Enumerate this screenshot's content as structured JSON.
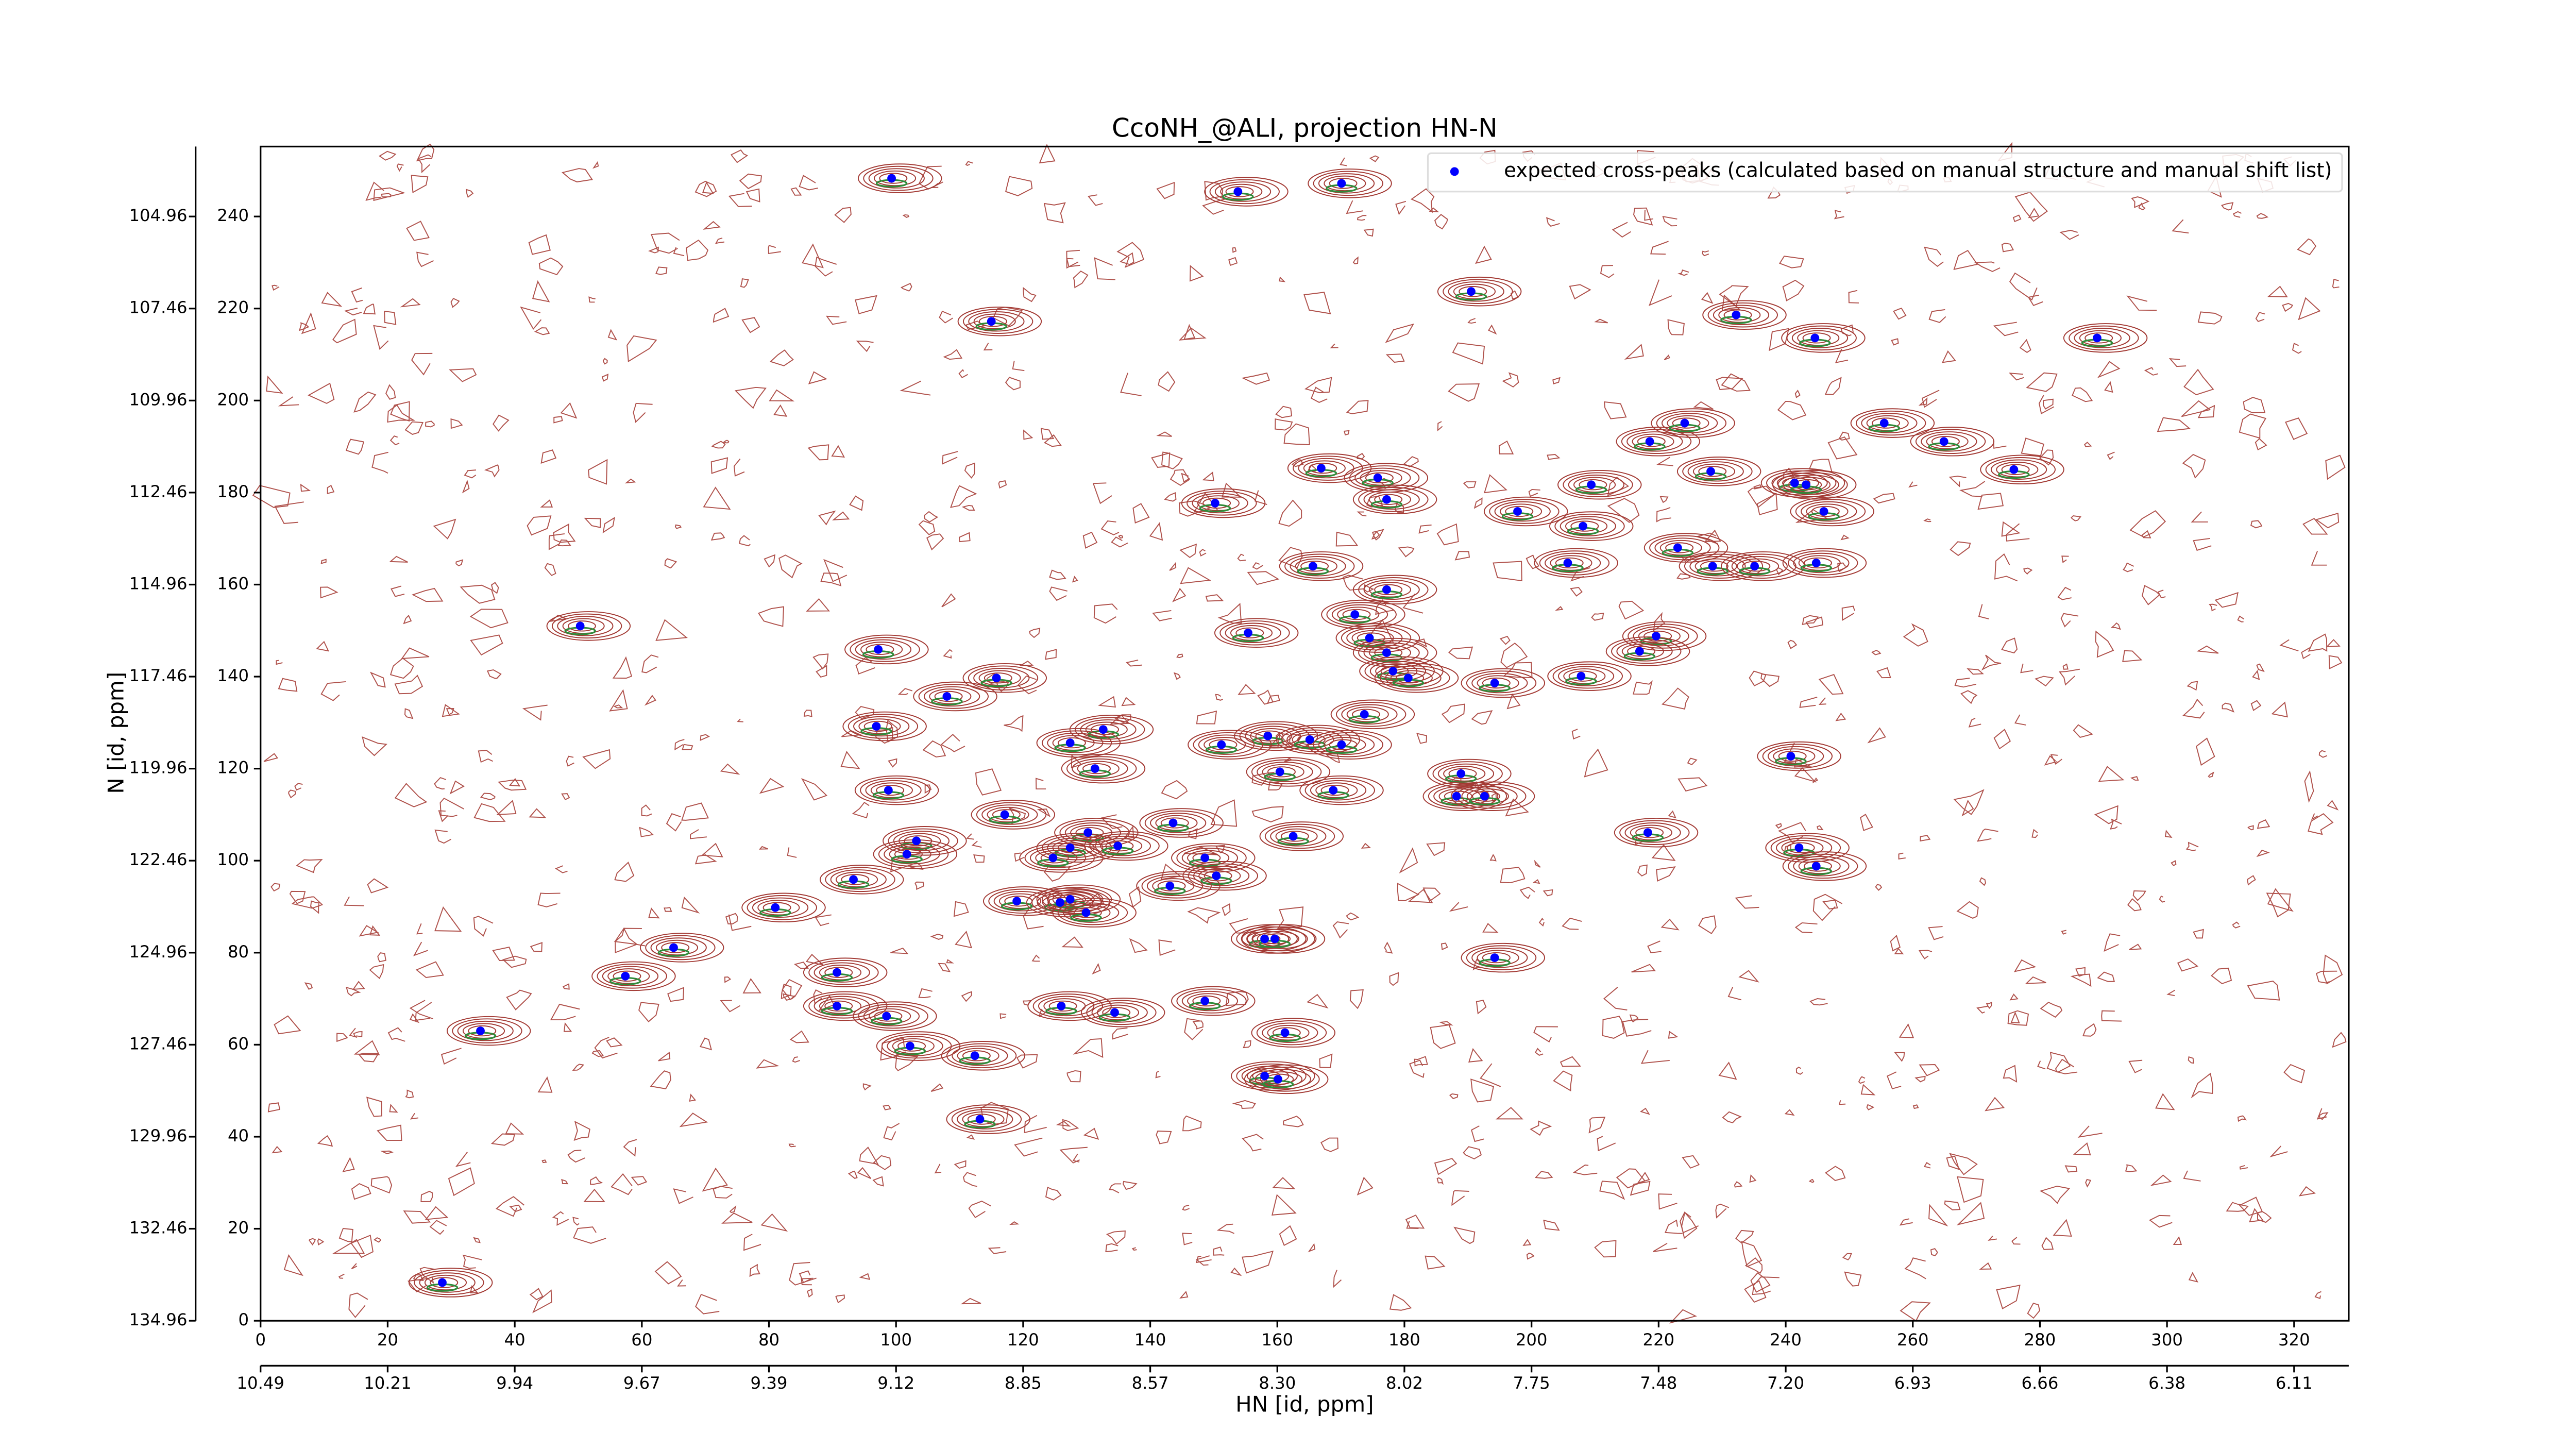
{
  "chart_data": {
    "type": "scatter",
    "title": "CcoNH_@ALI, projection HN-N",
    "xlabel": "HN [id, ppm]",
    "ylabel": "N [id, ppm]",
    "xlim": [
      0,
      328.6
    ],
    "ylim": [
      0,
      255.2
    ],
    "xticks": [
      0,
      20,
      40,
      60,
      80,
      100,
      120,
      140,
      160,
      180,
      200,
      220,
      240,
      260,
      280,
      300,
      320
    ],
    "yticks": [
      0,
      20,
      40,
      60,
      80,
      100,
      120,
      140,
      160,
      180,
      200,
      220,
      240
    ],
    "x2lim": [
      0,
      328.6
    ],
    "x2ticks": [
      {
        "value": 0,
        "label": "10.49"
      },
      {
        "value": 20,
        "label": "10.21"
      },
      {
        "value": 40,
        "label": "9.94"
      },
      {
        "value": 60,
        "label": "9.67"
      },
      {
        "value": 80,
        "label": "9.39"
      },
      {
        "value": 100,
        "label": "9.12"
      },
      {
        "value": 120,
        "label": "8.85"
      },
      {
        "value": 140,
        "label": "8.57"
      },
      {
        "value": 160,
        "label": "8.30"
      },
      {
        "value": 180,
        "label": "8.02"
      },
      {
        "value": 200,
        "label": "7.75"
      },
      {
        "value": 220,
        "label": "7.48"
      },
      {
        "value": 240,
        "label": "7.20"
      },
      {
        "value": 260,
        "label": "6.93"
      },
      {
        "value": 280,
        "label": "6.66"
      },
      {
        "value": 300,
        "label": "6.38"
      },
      {
        "value": 320,
        "label": "6.11"
      }
    ],
    "y2lim": [
      0,
      255.2
    ],
    "y2ticks": [
      {
        "value": 0,
        "label": "134.96"
      },
      {
        "value": 20,
        "label": "132.46"
      },
      {
        "value": 40,
        "label": "129.96"
      },
      {
        "value": 60,
        "label": "127.46"
      },
      {
        "value": 80,
        "label": "124.96"
      },
      {
        "value": 100,
        "label": "122.46"
      },
      {
        "value": 120,
        "label": "119.96"
      },
      {
        "value": 140,
        "label": "117.46"
      },
      {
        "value": 160,
        "label": "114.96"
      },
      {
        "value": 180,
        "label": "112.46"
      },
      {
        "value": 200,
        "label": "109.96"
      },
      {
        "value": 220,
        "label": "107.46"
      },
      {
        "value": 240,
        "label": "104.96"
      }
    ],
    "legend": "upper right",
    "series": [
      {
        "name": "expected cross-peaks (calculated based on manual structure and manual shift list)",
        "color": "#0000ff",
        "x": [
          99.3,
          153.8,
          170.1,
          115.0,
          190.5,
          232.2,
          244.6,
          289.0,
          218.6,
          224.1,
          255.5,
          264.9,
          275.9,
          166.9,
          175.8,
          209.4,
          228.2,
          241.4,
          243.2,
          150.2,
          177.2,
          197.8,
          246.0,
          208.1,
          223.0,
          205.7,
          228.5,
          235.1,
          244.8,
          165.6,
          177.2,
          172.2,
          50.3,
          155.4,
          174.5,
          97.2,
          219.6,
          217.0,
          177.2,
          178.2,
          180.6,
          194.2,
          207.8,
          115.8,
          108.0,
          173.7,
          96.9,
          158.5,
          132.6,
          127.4,
          151.2,
          165.1,
          170.1,
          240.8,
          131.3,
          160.4,
          188.9,
          98.8,
          168.8,
          188.2,
          192.6,
          117.1,
          143.6,
          103.2,
          130.2,
          162.5,
          218.3,
          127.4,
          134.9,
          101.7,
          124.7,
          148.6,
          242.1,
          244.8,
          93.3,
          150.4,
          143.1,
          119.0,
          125.8,
          127.4,
          129.9,
          81.0,
          158.0,
          159.6,
          65.0,
          194.2,
          57.4,
          90.7,
          90.7,
          126.0,
          134.4,
          148.6,
          98.5,
          161.2,
          34.6,
          102.2,
          112.4,
          158.0,
          160.1,
          113.2,
          28.6
        ],
        "y": [
          248.3,
          245.4,
          247.2,
          217.2,
          223.7,
          218.6,
          213.6,
          213.6,
          191.1,
          195.1,
          195.1,
          191.1,
          185.0,
          185.3,
          183.2,
          181.7,
          184.6,
          182.1,
          181.7,
          177.7,
          178.5,
          175.9,
          175.9,
          172.7,
          168.0,
          164.7,
          164.0,
          164.0,
          164.7,
          164.0,
          158.9,
          153.5,
          151.0,
          149.5,
          148.4,
          145.9,
          148.8,
          145.5,
          145.2,
          141.2,
          139.7,
          138.6,
          140.1,
          139.7,
          135.7,
          131.8,
          129.2,
          127.1,
          128.5,
          125.6,
          125.2,
          126.3,
          125.2,
          122.7,
          120.0,
          119.3,
          118.9,
          115.3,
          115.3,
          114.0,
          114.0,
          110.0,
          108.2,
          104.3,
          106.1,
          105.3,
          106.1,
          102.8,
          103.2,
          101.4,
          100.6,
          100.6,
          102.8,
          98.8,
          95.9,
          96.7,
          94.5,
          91.2,
          90.9,
          91.6,
          88.7,
          89.8,
          83.0,
          83.0,
          81.1,
          78.9,
          74.9,
          75.7,
          68.4,
          68.4,
          67.0,
          69.5,
          66.2,
          62.6,
          63.0,
          59.7,
          57.6,
          53.2,
          52.5,
          43.8,
          8.3
        ]
      }
    ]
  }
}
